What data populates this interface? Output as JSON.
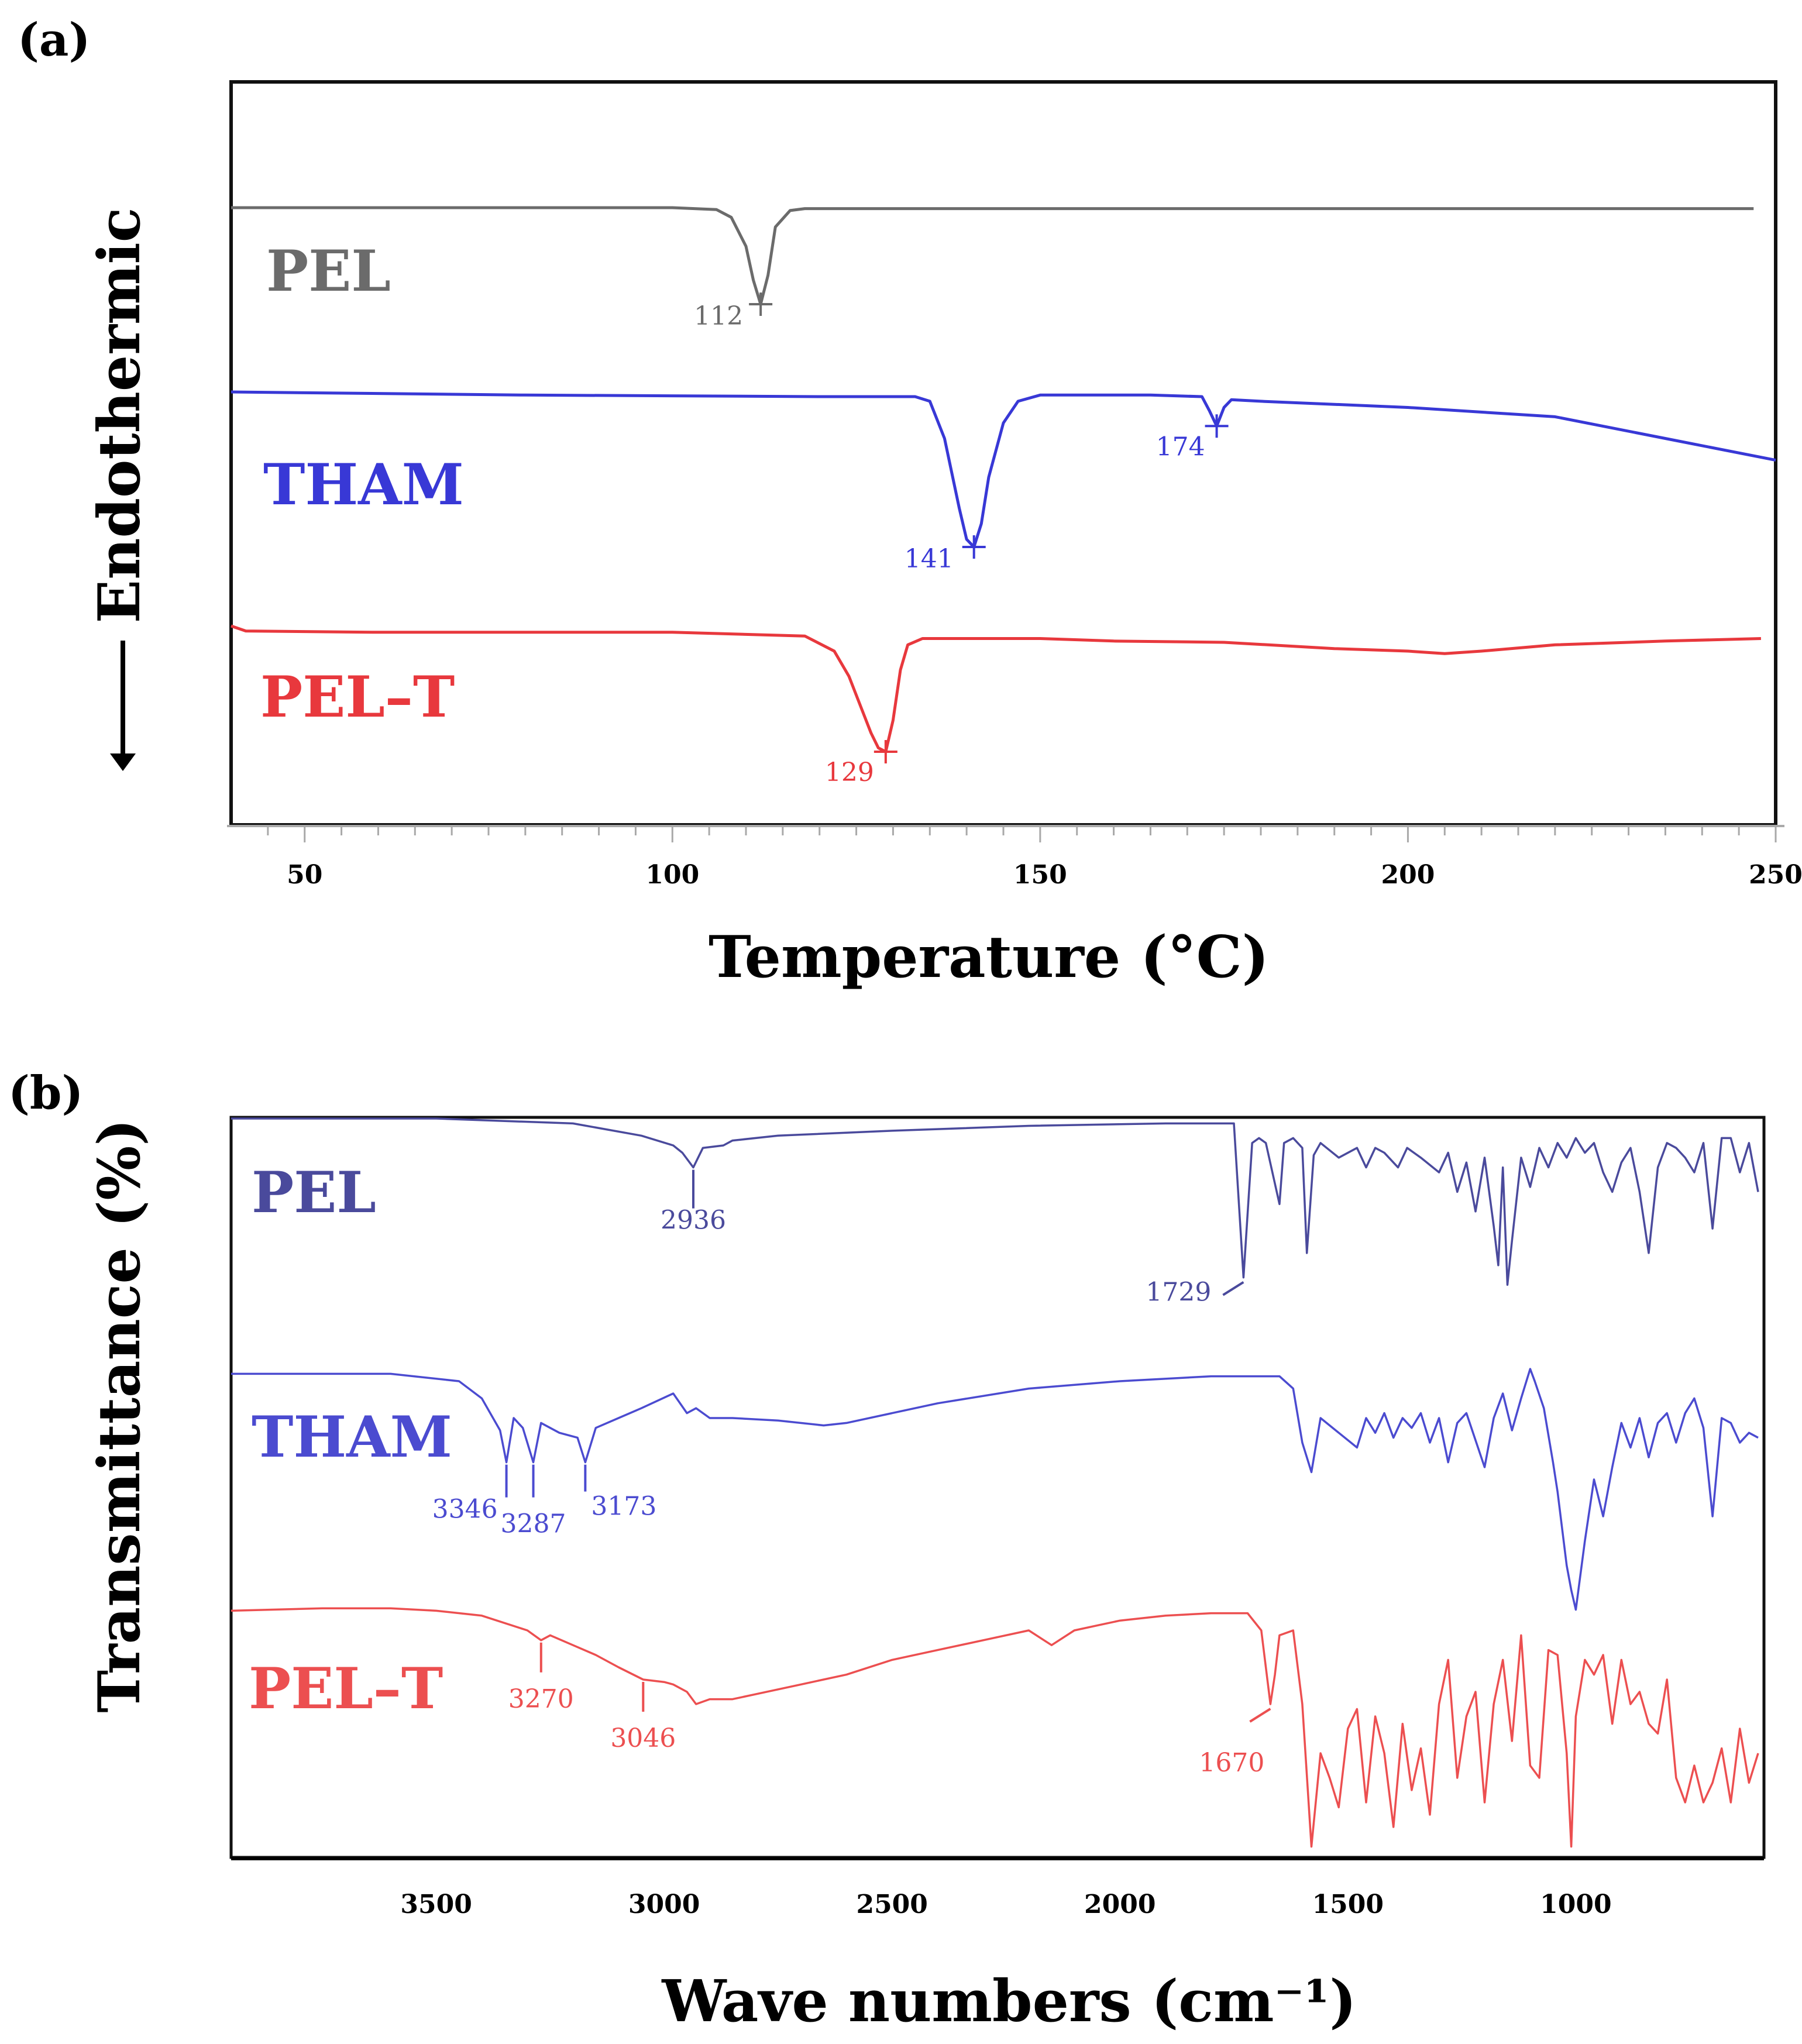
{
  "figure": {
    "panel_a_label": "(a)",
    "panel_b_label": "(b)"
  },
  "chart_data": [
    {
      "type": "line",
      "panel": "(a)",
      "title": "",
      "xlabel": "Temperature (°C)",
      "ylabel": "Endothermic",
      "xlim": [
        40,
        250
      ],
      "xticks": [
        50,
        100,
        150,
        200,
        250
      ],
      "grid": false,
      "series": [
        {
          "name": "PEL",
          "color": "#6b6b6b",
          "x": [
            40,
            100,
            106,
            108,
            110,
            111,
            112,
            113,
            114,
            116,
            118,
            130,
            160,
            200,
            247
          ],
          "y": [
            0.0,
            0.0,
            -0.02,
            -0.1,
            -0.4,
            -0.75,
            -1.0,
            -0.7,
            -0.2,
            -0.03,
            -0.01,
            -0.01,
            -0.01,
            -0.01,
            -0.01
          ],
          "annotations": [
            {
              "x": 112,
              "label": "112"
            }
          ]
        },
        {
          "name": "THAM",
          "color": "#3838d6",
          "x": [
            40,
            80,
            120,
            133,
            135,
            137,
            139,
            140,
            141,
            142,
            143,
            145,
            147,
            150,
            155,
            165,
            172,
            173,
            174,
            175,
            176,
            180,
            200,
            220,
            235,
            250
          ],
          "y": [
            0.0,
            -0.02,
            -0.03,
            -0.03,
            -0.06,
            -0.3,
            -0.75,
            -0.95,
            -1.0,
            -0.85,
            -0.55,
            -0.2,
            -0.06,
            -0.02,
            -0.02,
            -0.02,
            -0.03,
            -0.12,
            -0.22,
            -0.1,
            -0.05,
            -0.06,
            -0.1,
            -0.16,
            -0.3,
            -0.44
          ],
          "annotations": [
            {
              "x": 141,
              "label": "141"
            },
            {
              "x": 174,
              "label": "174"
            }
          ]
        },
        {
          "name": "PEL–T",
          "color": "#e8383d",
          "x": [
            40,
            42,
            60,
            100,
            118,
            122,
            124,
            126,
            127,
            128,
            129,
            130,
            131,
            132,
            134,
            137,
            150,
            160,
            175,
            190,
            200,
            205,
            210,
            220,
            235,
            248
          ],
          "y": [
            0.0,
            -0.04,
            -0.05,
            -0.05,
            -0.08,
            -0.2,
            -0.4,
            -0.7,
            -0.85,
            -0.97,
            -1.0,
            -0.75,
            -0.35,
            -0.15,
            -0.1,
            -0.1,
            -0.1,
            -0.12,
            -0.13,
            -0.18,
            -0.2,
            -0.22,
            -0.2,
            -0.15,
            -0.12,
            -0.1
          ],
          "annotations": [
            {
              "x": 129,
              "label": "129"
            }
          ]
        }
      ]
    },
    {
      "type": "line",
      "panel": "(b)",
      "title": "",
      "xlabel": "Wave numbers (cm⁻¹)",
      "ylabel": "Transmittance (%)",
      "xlim": [
        3950,
        600
      ],
      "xticks": [
        3500,
        3000,
        2500,
        2000,
        1500,
        1000
      ],
      "grid": false,
      "series": [
        {
          "name": "PEL",
          "color": "#4a4a9c",
          "x": [
            3950,
            3500,
            3200,
            3050,
            2980,
            2960,
            2936,
            2915,
            2870,
            2850,
            2750,
            2500,
            2200,
            1900,
            1750,
            1729,
            1710,
            1695,
            1680,
            1650,
            1640,
            1620,
            1600,
            1590,
            1575,
            1560,
            1520,
            1480,
            1460,
            1440,
            1420,
            1390,
            1370,
            1340,
            1300,
            1280,
            1260,
            1240,
            1220,
            1200,
            1180,
            1170,
            1160,
            1150,
            1140,
            1120,
            1100,
            1080,
            1060,
            1040,
            1020,
            1000,
            980,
            960,
            940,
            920,
            900,
            880,
            860,
            840,
            820,
            800,
            780,
            760,
            740,
            720,
            700,
            680,
            660,
            640,
            620,
            600
          ],
          "y": [
            100,
            100,
            98,
            93,
            89,
            86,
            80,
            88,
            89,
            91,
            93,
            95,
            97,
            98,
            98,
            35,
            90,
            92,
            90,
            65,
            90,
            92,
            88,
            45,
            85,
            90,
            84,
            88,
            80,
            88,
            86,
            80,
            88,
            84,
            78,
            86,
            70,
            82,
            62,
            84,
            56,
            40,
            80,
            32,
            50,
            84,
            72,
            88,
            80,
            90,
            84,
            92,
            86,
            90,
            78,
            70,
            82,
            88,
            70,
            45,
            80,
            90,
            88,
            84,
            78,
            90,
            55,
            92,
            92,
            78,
            90,
            70
          ],
          "annotations": [
            {
              "x": 2936,
              "label": "2936"
            },
            {
              "x": 1729,
              "label": "1729"
            }
          ]
        },
        {
          "name": "THAM",
          "color": "#4b4bd0",
          "x": [
            3950,
            3600,
            3450,
            3400,
            3360,
            3346,
            3330,
            3310,
            3287,
            3270,
            3230,
            3190,
            3173,
            3150,
            3100,
            3050,
            2980,
            2950,
            2930,
            2900,
            2850,
            2750,
            2650,
            2600,
            2400,
            2200,
            2000,
            1800,
            1650,
            1620,
            1600,
            1580,
            1560,
            1520,
            1480,
            1460,
            1440,
            1420,
            1400,
            1380,
            1360,
            1340,
            1320,
            1300,
            1280,
            1260,
            1240,
            1200,
            1180,
            1160,
            1140,
            1120,
            1100,
            1090,
            1070,
            1050,
            1040,
            1020,
            1010,
            1000,
            980,
            960,
            940,
            920,
            900,
            880,
            860,
            840,
            820,
            800,
            780,
            760,
            740,
            720,
            700,
            680,
            660,
            640,
            620,
            600
          ],
          "y": [
            98,
            98,
            95,
            88,
            75,
            62,
            80,
            76,
            62,
            78,
            74,
            72,
            62,
            76,
            80,
            84,
            90,
            82,
            84,
            80,
            80,
            79,
            77,
            78,
            86,
            92,
            95,
            97,
            97,
            92,
            70,
            58,
            80,
            74,
            68,
            80,
            74,
            82,
            72,
            80,
            76,
            82,
            70,
            80,
            62,
            78,
            82,
            60,
            80,
            90,
            75,
            88,
            100,
            95,
            84,
            62,
            50,
            20,
            10,
            2,
            30,
            55,
            40,
            60,
            78,
            68,
            80,
            64,
            78,
            82,
            70,
            82,
            88,
            76,
            40,
            80,
            78,
            70,
            74,
            72
          ],
          "annotations": [
            {
              "x": 3346,
              "label": "3346"
            },
            {
              "x": 3287,
              "label": "3287"
            },
            {
              "x": 3173,
              "label": "3173"
            }
          ]
        },
        {
          "name": "PEL–T",
          "color": "#ec4f50",
          "x": [
            3950,
            3750,
            3600,
            3500,
            3400,
            3300,
            3270,
            3250,
            3200,
            3150,
            3100,
            3046,
            3000,
            2980,
            2950,
            2930,
            2900,
            2850,
            2800,
            2700,
            2600,
            2500,
            2400,
            2300,
            2200,
            2150,
            2100,
            2050,
            2000,
            1900,
            1800,
            1720,
            1690,
            1670,
            1660,
            1650,
            1620,
            1600,
            1580,
            1560,
            1540,
            1520,
            1500,
            1480,
            1460,
            1440,
            1420,
            1400,
            1380,
            1360,
            1340,
            1320,
            1300,
            1280,
            1260,
            1240,
            1220,
            1200,
            1180,
            1160,
            1140,
            1120,
            1100,
            1080,
            1060,
            1040,
            1020,
            1010,
            1000,
            980,
            960,
            940,
            920,
            900,
            880,
            860,
            840,
            820,
            800,
            780,
            760,
            740,
            720,
            700,
            680,
            660,
            640,
            620,
            600
          ],
          "y": [
            98,
            99,
            99,
            98,
            96,
            90,
            86,
            88,
            84,
            80,
            75,
            70,
            69,
            68,
            65,
            60,
            62,
            62,
            64,
            68,
            72,
            78,
            82,
            86,
            90,
            84,
            90,
            92,
            94,
            96,
            97,
            97,
            90,
            60,
            72,
            88,
            90,
            60,
            2,
            40,
            30,
            18,
            50,
            58,
            20,
            55,
            40,
            10,
            52,
            25,
            42,
            15,
            60,
            78,
            30,
            55,
            65,
            20,
            60,
            78,
            45,
            88,
            35,
            30,
            82,
            80,
            40,
            2,
            55,
            78,
            72,
            80,
            52,
            78,
            60,
            65,
            52,
            48,
            70,
            30,
            20,
            35,
            20,
            28,
            42,
            20,
            50,
            28,
            40
          ],
          "annotations": [
            {
              "x": 3270,
              "label": "3270"
            },
            {
              "x": 3046,
              "label": "3046"
            },
            {
              "x": 1670,
              "label": "1670"
            }
          ]
        }
      ]
    }
  ]
}
